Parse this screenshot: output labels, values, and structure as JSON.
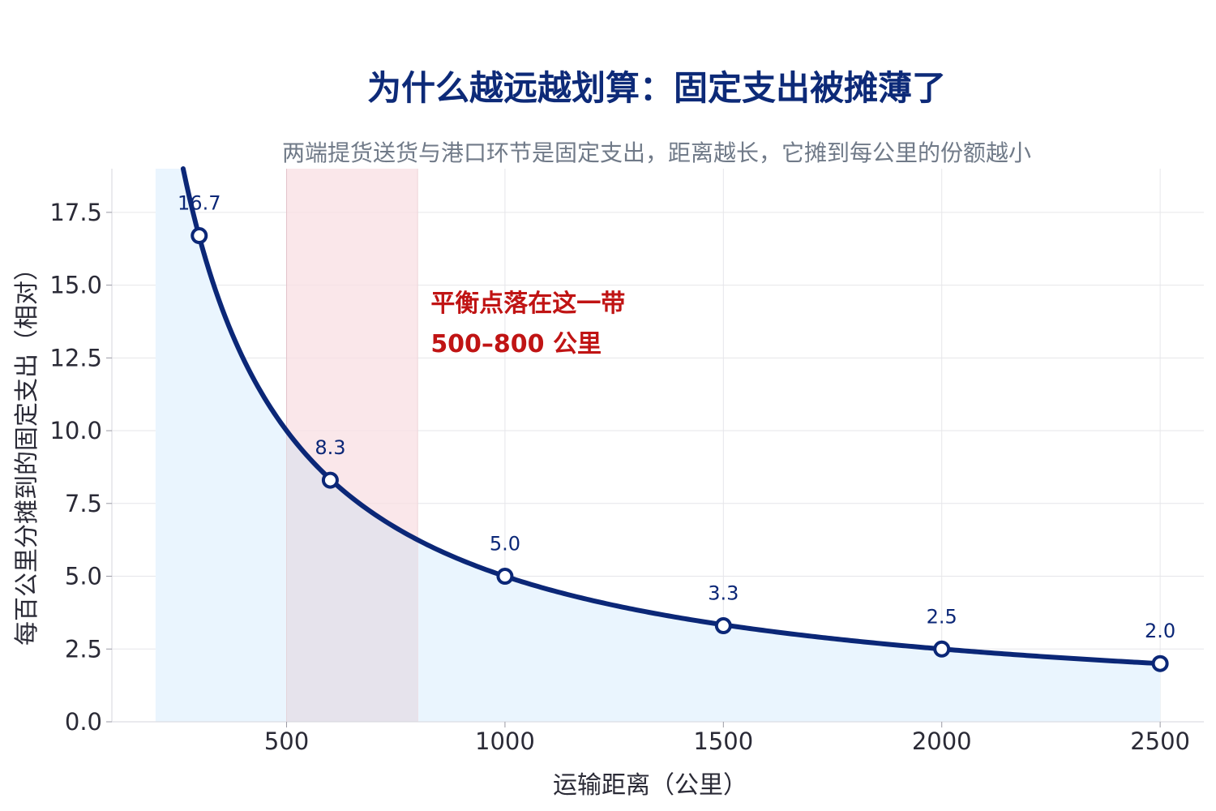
{
  "chart_data": {
    "type": "line",
    "title": "为什么越远越划算：固定支出被摊薄了",
    "subtitle": "两端提货送货与港口环节是固定支出，距离越长，它摊到每公里的份额越小",
    "xlabel": "运输距离（公里）",
    "ylabel": "每百公里分摊到的固定支出（相对）",
    "xlim": [
      100,
      2600
    ],
    "ylim": [
      0,
      19
    ],
    "x_ticks": [
      500,
      1000,
      1500,
      2000,
      2500
    ],
    "x_tick_labels": [
      "500",
      "1000",
      "1500",
      "2000",
      "2500"
    ],
    "y_ticks": [
      0,
      2.5,
      5,
      7.5,
      10,
      12.5,
      15,
      17.5
    ],
    "y_tick_labels": [
      "0.0",
      "2.5",
      "5.0",
      "7.5",
      "10.0",
      "12.5",
      "15.0",
      "17.5"
    ],
    "grid": true,
    "curve": {
      "formula": "y = 5000 / x",
      "x_range": [
        200,
        2500
      ]
    },
    "series": [
      {
        "x": [
          300,
          600,
          1000,
          1500,
          2000,
          2500
        ],
        "y": [
          16.7,
          8.3,
          5.0,
          3.3,
          2.5,
          2.0
        ],
        "labels": [
          "16.7",
          "8.3",
          "5.0",
          "3.3",
          "2.5",
          "2.0"
        ]
      }
    ],
    "highlight_band": {
      "x_range": [
        500,
        800
      ],
      "label_line1": "平衡点落在这一带",
      "label_line2": "500–800 公里",
      "label_x": 830,
      "label_y1": 14.1,
      "label_y2": 12.7
    },
    "colors": {
      "title": "#0d2a78",
      "subtitle": "#707a88",
      "line": "#0b2777",
      "area_fill": "#eaf5fe",
      "band_fill": "#f8dfe3",
      "annotation": "#c01414",
      "grid": "#e6e6ea",
      "tick_text": "#2a2a36",
      "data_label": "#0b2777"
    }
  }
}
